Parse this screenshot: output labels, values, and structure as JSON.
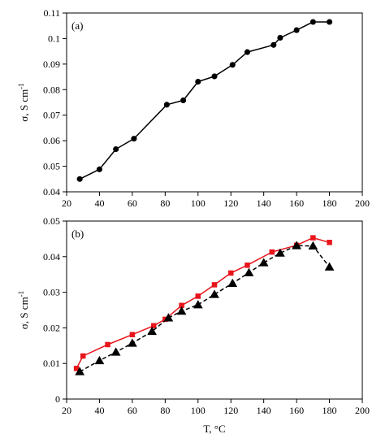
{
  "chart_data": [
    {
      "type": "line",
      "panel_label": "(a)",
      "xlabel": "",
      "ylabel": "σ, S cm",
      "ylabel_sup": "-1",
      "xlim": [
        20,
        200
      ],
      "ylim": [
        0.04,
        0.11
      ],
      "xticks": [
        20,
        40,
        60,
        80,
        100,
        120,
        140,
        160,
        180,
        200
      ],
      "xtick_labels": [
        "20",
        "40",
        "60",
        "80",
        "100",
        "120",
        "140",
        "160",
        "180",
        "200"
      ],
      "yticks": [
        0.04,
        0.05,
        0.06,
        0.07,
        0.08,
        0.09,
        0.1,
        0.11
      ],
      "ytick_labels": [
        "0.04",
        "0.05",
        "0.06",
        "0.07",
        "0.08",
        "0.09",
        "0.1",
        "0.11"
      ],
      "grid": false,
      "series": [
        {
          "color": "#000000",
          "marker": "circle",
          "line": "solid",
          "x": [
            28,
            40,
            50,
            61,
            81,
            91,
            100,
            110,
            121,
            130,
            146,
            150,
            160,
            170,
            180
          ],
          "y": [
            0.045,
            0.0488,
            0.0567,
            0.0608,
            0.0741,
            0.0758,
            0.0831,
            0.0852,
            0.0897,
            0.0947,
            0.0975,
            0.1003,
            0.1033,
            0.1065,
            0.1065
          ]
        }
      ]
    },
    {
      "type": "line",
      "panel_label": "(b)",
      "xlabel": "T, °C",
      "ylabel": "σ, S cm",
      "ylabel_sup": "-1",
      "xlim": [
        20,
        200
      ],
      "ylim": [
        0,
        0.05
      ],
      "xticks": [
        20,
        40,
        60,
        80,
        100,
        120,
        140,
        160,
        180,
        200
      ],
      "xtick_labels": [
        "20",
        "40",
        "60",
        "80",
        "100",
        "120",
        "140",
        "160",
        "180",
        "200"
      ],
      "yticks": [
        0,
        0.01,
        0.02,
        0.03,
        0.04,
        0.05
      ],
      "ytick_labels": [
        "0",
        "0.01",
        "0.02",
        "0.03",
        "0.04",
        "0.05"
      ],
      "grid": false,
      "series": [
        {
          "color": "#e8151b",
          "marker": "square",
          "line": "solid",
          "x": [
            26,
            30,
            45,
            60,
            73,
            80,
            90,
            100,
            110,
            120,
            130,
            145,
            160,
            170,
            180
          ],
          "y": [
            0.0086,
            0.0121,
            0.0153,
            0.0181,
            0.0206,
            0.0224,
            0.0263,
            0.0289,
            0.0321,
            0.0354,
            0.0376,
            0.0413,
            0.0432,
            0.0453,
            0.044
          ]
        },
        {
          "color": "#000000",
          "marker": "triangle",
          "line": "dashed",
          "x": [
            28,
            40,
            50,
            60,
            72,
            82,
            90,
            100,
            110,
            121,
            131,
            140,
            150,
            160,
            170,
            180
          ],
          "y": [
            0.0077,
            0.0108,
            0.0132,
            0.0157,
            0.019,
            0.0228,
            0.0247,
            0.0265,
            0.0294,
            0.0325,
            0.0355,
            0.0383,
            0.041,
            0.0431,
            0.043,
            0.0371
          ]
        }
      ]
    }
  ]
}
